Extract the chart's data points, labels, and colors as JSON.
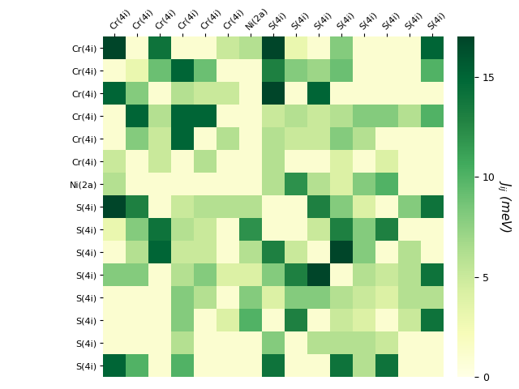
{
  "row_labels": [
    "Cr(4i)",
    "Cr(4i)",
    "Cr(4i)",
    "Cr(4i)",
    "Cr(4i)",
    "Cr(4i)",
    "Ni(2a)",
    "S(4i)",
    "S(4i)",
    "S(4i)",
    "S(4i)",
    "S(4i)",
    "S(4i)",
    "S(4i)",
    "S(4i)"
  ],
  "col_labels": [
    "Cr(4i)",
    "Cr(4i)",
    "Cr(4i)",
    "Cr(4i)",
    "Cr(4i)",
    "Cr(4i)",
    "Ni(2a)",
    "S(4i)",
    "S(4i)",
    "S(4i)",
    "S(4i)",
    "S(4i)",
    "S(4i)",
    "S(4i)",
    "S(4i)"
  ],
  "matrix": [
    [
      17,
      1,
      14,
      1,
      1,
      5,
      6,
      17,
      3,
      1,
      8,
      1,
      1,
      1,
      15
    ],
    [
      1,
      3,
      9,
      15,
      9,
      1,
      1,
      13,
      8,
      7,
      9,
      1,
      1,
      1,
      10
    ],
    [
      15,
      8,
      1,
      6,
      5,
      5,
      1,
      17,
      1,
      15,
      1,
      1,
      1,
      1,
      1
    ],
    [
      1,
      15,
      6,
      15,
      15,
      1,
      1,
      5,
      6,
      5,
      6,
      8,
      8,
      6,
      10
    ],
    [
      1,
      8,
      5,
      15,
      1,
      6,
      1,
      6,
      5,
      5,
      8,
      6,
      1,
      1,
      1
    ],
    [
      5,
      1,
      5,
      1,
      6,
      1,
      1,
      6,
      1,
      1,
      4,
      1,
      4,
      1,
      1
    ],
    [
      6,
      1,
      1,
      1,
      1,
      1,
      1,
      6,
      12,
      6,
      4,
      8,
      10,
      1,
      1
    ],
    [
      17,
      13,
      1,
      5,
      6,
      6,
      6,
      1,
      1,
      13,
      8,
      4,
      1,
      8,
      14
    ],
    [
      3,
      8,
      14,
      6,
      5,
      1,
      12,
      1,
      1,
      5,
      13,
      8,
      13,
      1,
      1
    ],
    [
      1,
      6,
      15,
      5,
      5,
      1,
      6,
      13,
      5,
      1,
      17,
      8,
      1,
      6,
      1
    ],
    [
      8,
      8,
      1,
      6,
      8,
      4,
      4,
      8,
      13,
      17,
      1,
      6,
      5,
      6,
      14
    ],
    [
      1,
      1,
      1,
      8,
      6,
      1,
      8,
      4,
      8,
      8,
      6,
      5,
      4,
      6,
      6
    ],
    [
      1,
      1,
      1,
      8,
      1,
      4,
      10,
      1,
      13,
      1,
      5,
      4,
      1,
      5,
      14
    ],
    [
      1,
      1,
      1,
      6,
      1,
      1,
      1,
      8,
      1,
      6,
      6,
      6,
      5,
      1,
      1
    ],
    [
      15,
      10,
      1,
      10,
      1,
      1,
      1,
      14,
      1,
      1,
      14,
      6,
      14,
      1,
      1
    ]
  ],
  "vmin": 0,
  "vmax": 17,
  "cbar_label": "$J_{ij}$ (meV)",
  "cbar_ticks": [
    0,
    5,
    10,
    15
  ],
  "colormap": "YlGn",
  "figsize": [
    6.4,
    4.8
  ],
  "dpi": 100,
  "tick_fontsize": 8,
  "cbar_fontsize": 11
}
